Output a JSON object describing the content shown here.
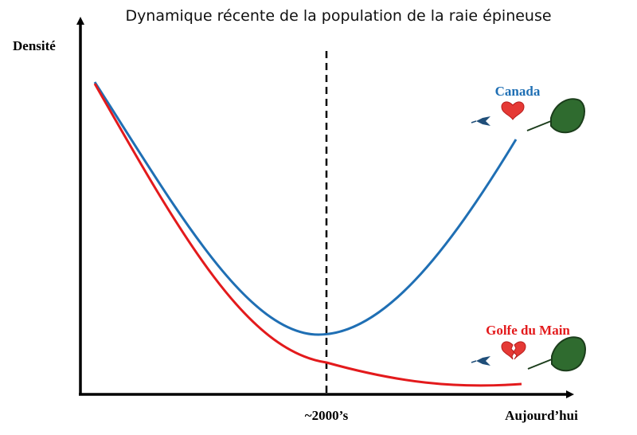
{
  "chart_data": {
    "type": "line",
    "title": "Dynamique récente de la population de la raie épineuse",
    "ylabel": "Densité",
    "xlabel": "",
    "tick_labels": {
      "marker": "~2000’s",
      "end": "Aujourd’hui"
    },
    "marker_line": {
      "style": "dashed",
      "at": "~2000’s"
    },
    "series": [
      {
        "name": "Canada",
        "color": "#1f6fb4",
        "status_icon": "heart-icon",
        "trend": "decline then recovery"
      },
      {
        "name": "Golfe du Main",
        "color": "#e31a1c",
        "status_icon": "broken-heart-icon",
        "trend": "decline then low plateau"
      }
    ],
    "grid": false,
    "axes": {
      "arrow_x": true,
      "arrow_y": true
    }
  }
}
